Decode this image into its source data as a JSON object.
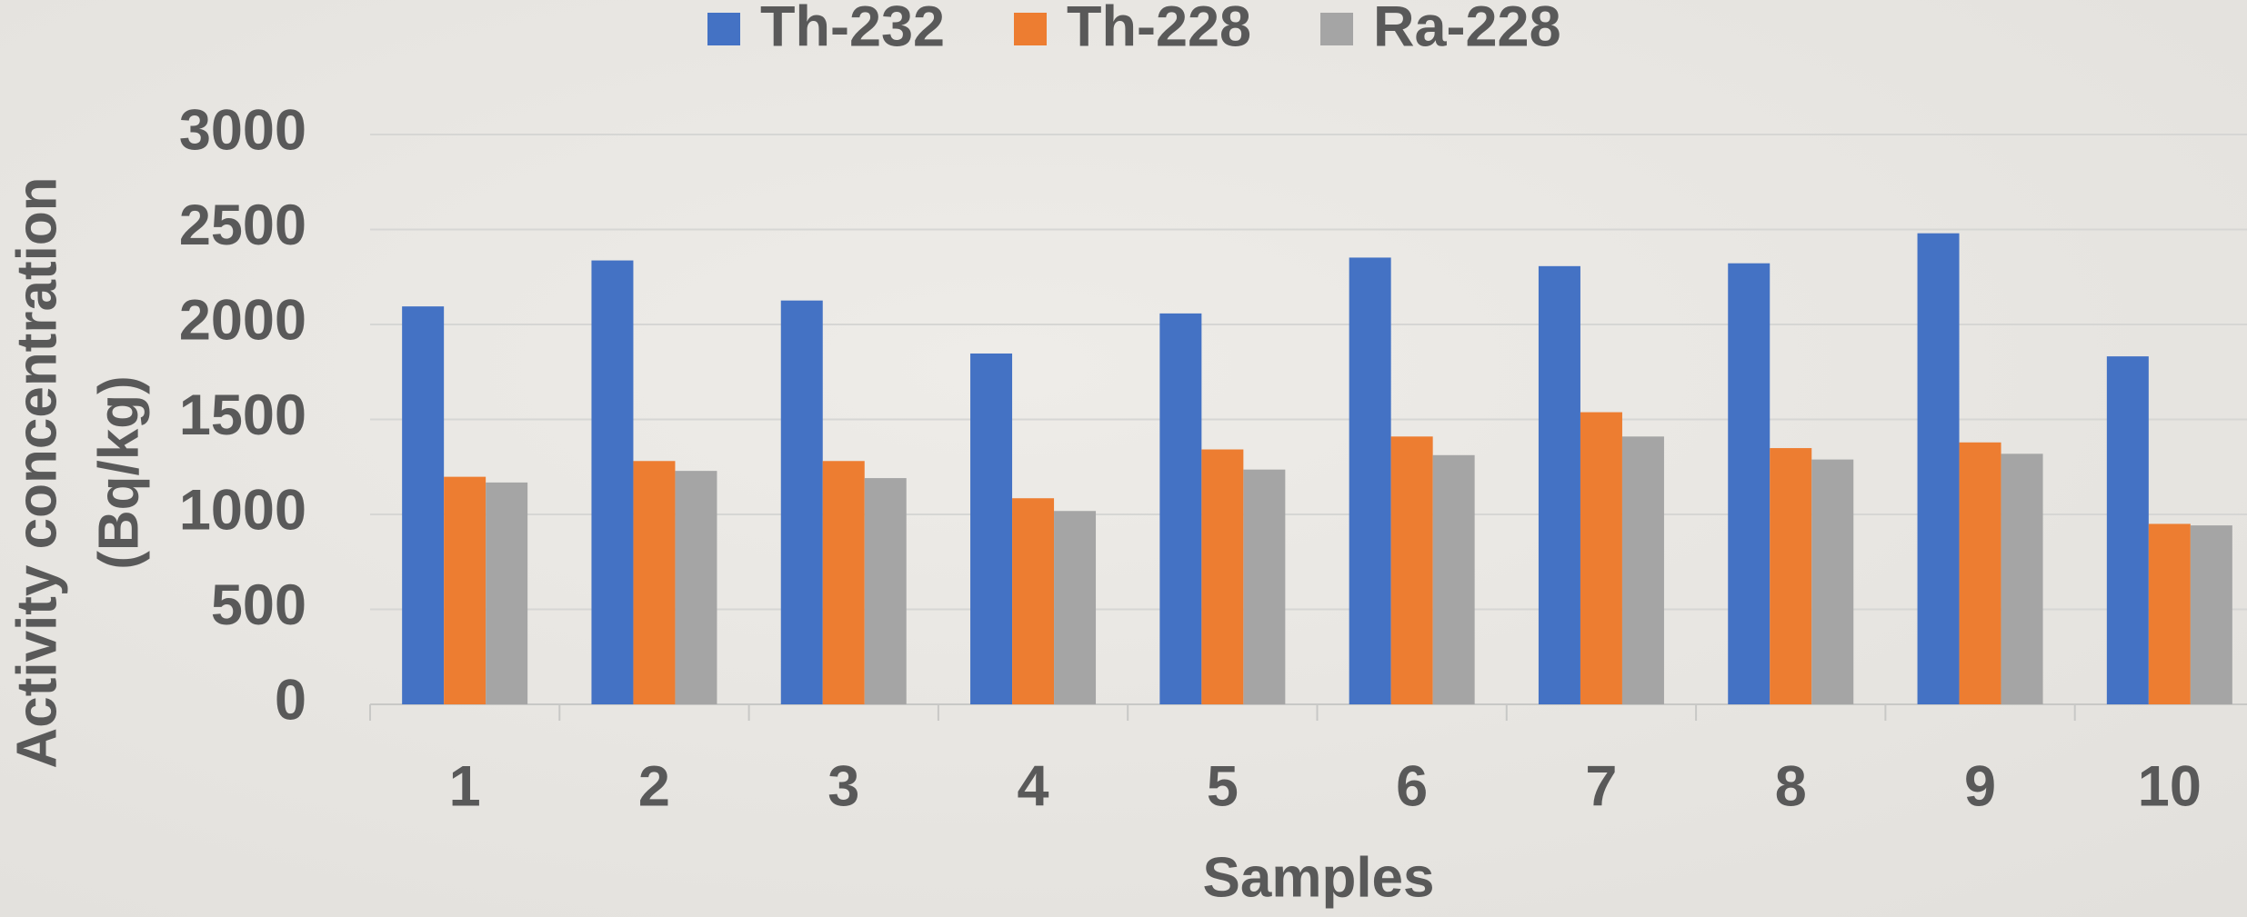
{
  "chart_data": {
    "type": "bar",
    "x_label": "Samples",
    "y_label": [
      "Activity concentration",
      "(Bq/kg)"
    ],
    "categories": [
      "1",
      "2",
      "3",
      "4",
      "5",
      "6",
      "7",
      "8",
      "9",
      "10"
    ],
    "series": [
      {
        "name": "Th-232",
        "color": "#4472c4",
        "values": [
          2095,
          2337,
          2126,
          1847,
          2058,
          2352,
          2307,
          2322,
          2480,
          1832
        ]
      },
      {
        "name": "Th-228",
        "color": "#ed7d31",
        "values": [
          1198,
          1281,
          1281,
          1085,
          1342,
          1410,
          1538,
          1349,
          1379,
          950
        ]
      },
      {
        "name": "Ra-228",
        "color": "#a5a5a5",
        "values": [
          1168,
          1229,
          1191,
          1018,
          1236,
          1312,
          1410,
          1289,
          1319,
          942
        ]
      }
    ],
    "ylim": [
      0,
      3000
    ],
    "yticks": [
      0,
      500,
      1000,
      1500,
      2000,
      2500,
      3000
    ],
    "grid": true,
    "legend": "top"
  }
}
